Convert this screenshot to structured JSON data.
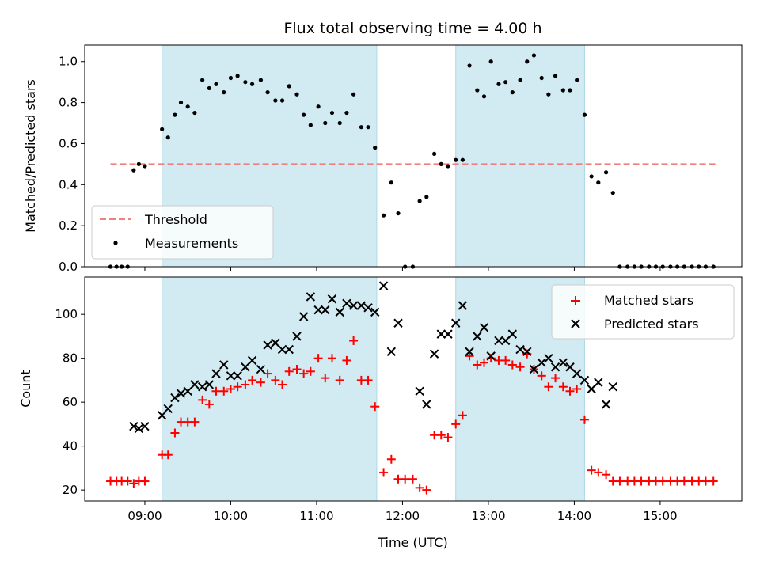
{
  "chart_data": {
    "type": "scatter",
    "title": "Flux total observing time = 4.00 h",
    "xlabel": "Time (UTC)",
    "x_tick_labels": [
      "09:00",
      "10:00",
      "11:00",
      "12:00",
      "13:00",
      "14:00",
      "15:00"
    ],
    "xlim_hours": [
      8.3,
      15.95
    ],
    "x_ticks_hours": [
      9,
      10,
      11,
      12,
      13,
      14,
      15
    ],
    "shaded_intervals_hours": [
      [
        9.2,
        11.7
      ],
      [
        12.62,
        14.12
      ]
    ],
    "colors": {
      "shade": "#add8e6",
      "threshold": "#f08080",
      "measurements": "#000000",
      "matched": "#ff0000",
      "predicted": "#000000"
    },
    "panels": [
      {
        "ylabel": "Matched/Predicted stars",
        "ylim": [
          0,
          1.08
        ],
        "y_ticks": [
          0.0,
          0.2,
          0.4,
          0.6,
          0.8,
          1.0
        ],
        "y_tick_labels": [
          "0.0",
          "0.2",
          "0.4",
          "0.6",
          "0.8",
          "1.0"
        ],
        "legend_position": "lower-left",
        "threshold": {
          "name": "Threshold",
          "y": 0.5,
          "x_range_hours": [
            8.6,
            15.65
          ]
        },
        "series": [
          {
            "name": "Measurements",
            "marker": "dot",
            "points": [
              [
                8.6,
                0.0
              ],
              [
                8.67,
                0.0
              ],
              [
                8.73,
                0.0
              ],
              [
                8.8,
                0.0
              ],
              [
                8.87,
                0.47
              ],
              [
                8.93,
                0.5
              ],
              [
                9.0,
                0.49
              ],
              [
                9.2,
                0.67
              ],
              [
                9.27,
                0.63
              ],
              [
                9.35,
                0.74
              ],
              [
                9.42,
                0.8
              ],
              [
                9.5,
                0.78
              ],
              [
                9.58,
                0.75
              ],
              [
                9.67,
                0.91
              ],
              [
                9.75,
                0.87
              ],
              [
                9.83,
                0.89
              ],
              [
                9.92,
                0.85
              ],
              [
                10.0,
                0.92
              ],
              [
                10.08,
                0.93
              ],
              [
                10.17,
                0.9
              ],
              [
                10.25,
                0.89
              ],
              [
                10.35,
                0.91
              ],
              [
                10.43,
                0.85
              ],
              [
                10.52,
                0.81
              ],
              [
                10.6,
                0.81
              ],
              [
                10.68,
                0.88
              ],
              [
                10.77,
                0.84
              ],
              [
                10.85,
                0.74
              ],
              [
                10.93,
                0.69
              ],
              [
                11.02,
                0.78
              ],
              [
                11.1,
                0.7
              ],
              [
                11.18,
                0.75
              ],
              [
                11.27,
                0.7
              ],
              [
                11.35,
                0.75
              ],
              [
                11.43,
                0.84
              ],
              [
                11.52,
                0.68
              ],
              [
                11.6,
                0.68
              ],
              [
                11.68,
                0.58
              ],
              [
                11.78,
                0.25
              ],
              [
                11.87,
                0.41
              ],
              [
                11.95,
                0.26
              ],
              [
                12.03,
                0.0
              ],
              [
                12.12,
                0.0
              ],
              [
                12.2,
                0.32
              ],
              [
                12.28,
                0.34
              ],
              [
                12.37,
                0.55
              ],
              [
                12.45,
                0.5
              ],
              [
                12.53,
                0.49
              ],
              [
                12.62,
                0.52
              ],
              [
                12.7,
                0.52
              ],
              [
                12.78,
                0.98
              ],
              [
                12.87,
                0.86
              ],
              [
                12.95,
                0.83
              ],
              [
                13.03,
                1.0
              ],
              [
                13.12,
                0.89
              ],
              [
                13.2,
                0.9
              ],
              [
                13.28,
                0.85
              ],
              [
                13.37,
                0.91
              ],
              [
                13.45,
                1.0
              ],
              [
                13.53,
                1.03
              ],
              [
                13.62,
                0.92
              ],
              [
                13.7,
                0.84
              ],
              [
                13.78,
                0.93
              ],
              [
                13.87,
                0.86
              ],
              [
                13.95,
                0.86
              ],
              [
                14.03,
                0.91
              ],
              [
                14.12,
                0.74
              ],
              [
                14.2,
                0.44
              ],
              [
                14.28,
                0.41
              ],
              [
                14.37,
                0.46
              ],
              [
                14.45,
                0.36
              ],
              [
                14.53,
                0.0
              ],
              [
                14.62,
                0.0
              ],
              [
                14.7,
                0.0
              ],
              [
                14.78,
                0.0
              ],
              [
                14.87,
                0.0
              ],
              [
                14.95,
                0.0
              ],
              [
                15.03,
                0.0
              ],
              [
                15.12,
                0.0
              ],
              [
                15.2,
                0.0
              ],
              [
                15.28,
                0.0
              ],
              [
                15.37,
                0.0
              ],
              [
                15.45,
                0.0
              ],
              [
                15.53,
                0.0
              ],
              [
                15.62,
                0.0
              ]
            ]
          }
        ]
      },
      {
        "ylabel": "Count",
        "ylim": [
          15,
          117
        ],
        "y_ticks": [
          20,
          40,
          60,
          80,
          100
        ],
        "y_tick_labels": [
          "20",
          "40",
          "60",
          "80",
          "100"
        ],
        "legend_position": "upper-right",
        "series": [
          {
            "name": "Matched stars",
            "marker": "plus",
            "points": [
              [
                8.6,
                24
              ],
              [
                8.67,
                24
              ],
              [
                8.73,
                24
              ],
              [
                8.8,
                24
              ],
              [
                8.87,
                23
              ],
              [
                8.93,
                24
              ],
              [
                9.0,
                24
              ],
              [
                9.2,
                36
              ],
              [
                9.27,
                36
              ],
              [
                9.35,
                46
              ],
              [
                9.42,
                51
              ],
              [
                9.5,
                51
              ],
              [
                9.58,
                51
              ],
              [
                9.67,
                61
              ],
              [
                9.75,
                59
              ],
              [
                9.83,
                65
              ],
              [
                9.92,
                65
              ],
              [
                10.0,
                66
              ],
              [
                10.08,
                67
              ],
              [
                10.17,
                68
              ],
              [
                10.25,
                70
              ],
              [
                10.35,
                69
              ],
              [
                10.43,
                73
              ],
              [
                10.52,
                70
              ],
              [
                10.6,
                68
              ],
              [
                10.68,
                74
              ],
              [
                10.77,
                75
              ],
              [
                10.85,
                73
              ],
              [
                10.93,
                74
              ],
              [
                11.02,
                80
              ],
              [
                11.1,
                71
              ],
              [
                11.18,
                80
              ],
              [
                11.27,
                70
              ],
              [
                11.35,
                79
              ],
              [
                11.43,
                88
              ],
              [
                11.52,
                70
              ],
              [
                11.6,
                70
              ],
              [
                11.68,
                58
              ],
              [
                11.78,
                28
              ],
              [
                11.87,
                34
              ],
              [
                11.95,
                25
              ],
              [
                12.03,
                25
              ],
              [
                12.12,
                25
              ],
              [
                12.2,
                21
              ],
              [
                12.28,
                20
              ],
              [
                12.37,
                45
              ],
              [
                12.45,
                45
              ],
              [
                12.53,
                44
              ],
              [
                12.62,
                50
              ],
              [
                12.7,
                54
              ],
              [
                12.78,
                81
              ],
              [
                12.87,
                77
              ],
              [
                12.95,
                78
              ],
              [
                13.03,
                80
              ],
              [
                13.12,
                79
              ],
              [
                13.2,
                79
              ],
              [
                13.28,
                77
              ],
              [
                13.37,
                76
              ],
              [
                13.45,
                82
              ],
              [
                13.53,
                75
              ],
              [
                13.62,
                72
              ],
              [
                13.7,
                67
              ],
              [
                13.78,
                71
              ],
              [
                13.87,
                67
              ],
              [
                13.95,
                65
              ],
              [
                14.03,
                66
              ],
              [
                14.12,
                52
              ],
              [
                14.2,
                29
              ],
              [
                14.28,
                28
              ],
              [
                14.37,
                27
              ],
              [
                14.45,
                24
              ],
              [
                14.53,
                24
              ],
              [
                14.62,
                24
              ],
              [
                14.7,
                24
              ],
              [
                14.78,
                24
              ],
              [
                14.87,
                24
              ],
              [
                14.95,
                24
              ],
              [
                15.03,
                24
              ],
              [
                15.12,
                24
              ],
              [
                15.2,
                24
              ],
              [
                15.28,
                24
              ],
              [
                15.37,
                24
              ],
              [
                15.45,
                24
              ],
              [
                15.53,
                24
              ],
              [
                15.62,
                24
              ]
            ]
          },
          {
            "name": "Predicted stars",
            "marker": "cross",
            "points": [
              [
                8.87,
                49
              ],
              [
                8.93,
                48
              ],
              [
                9.0,
                49
              ],
              [
                9.2,
                54
              ],
              [
                9.27,
                57
              ],
              [
                9.35,
                62
              ],
              [
                9.42,
                64
              ],
              [
                9.5,
                65
              ],
              [
                9.58,
                68
              ],
              [
                9.67,
                67
              ],
              [
                9.75,
                68
              ],
              [
                9.83,
                73
              ],
              [
                9.92,
                77
              ],
              [
                10.0,
                72
              ],
              [
                10.08,
                72
              ],
              [
                10.17,
                76
              ],
              [
                10.25,
                79
              ],
              [
                10.35,
                75
              ],
              [
                10.43,
                86
              ],
              [
                10.52,
                87
              ],
              [
                10.6,
                84
              ],
              [
                10.68,
                84
              ],
              [
                10.77,
                90
              ],
              [
                10.85,
                99
              ],
              [
                10.93,
                108
              ],
              [
                11.02,
                102
              ],
              [
                11.1,
                102
              ],
              [
                11.18,
                107
              ],
              [
                11.27,
                101
              ],
              [
                11.35,
                105
              ],
              [
                11.43,
                104
              ],
              [
                11.52,
                104
              ],
              [
                11.6,
                103
              ],
              [
                11.68,
                101
              ],
              [
                11.78,
                113
              ],
              [
                11.87,
                83
              ],
              [
                11.95,
                96
              ],
              [
                12.2,
                65
              ],
              [
                12.28,
                59
              ],
              [
                12.37,
                82
              ],
              [
                12.45,
                91
              ],
              [
                12.53,
                91
              ],
              [
                12.62,
                96
              ],
              [
                12.7,
                104
              ],
              [
                12.78,
                83
              ],
              [
                12.87,
                90
              ],
              [
                12.95,
                94
              ],
              [
                13.03,
                81
              ],
              [
                13.12,
                88
              ],
              [
                13.2,
                88
              ],
              [
                13.28,
                91
              ],
              [
                13.37,
                84
              ],
              [
                13.45,
                83
              ],
              [
                13.53,
                75
              ],
              [
                13.62,
                78
              ],
              [
                13.7,
                80
              ],
              [
                13.78,
                76
              ],
              [
                13.87,
                78
              ],
              [
                13.95,
                76
              ],
              [
                14.03,
                73
              ],
              [
                14.12,
                70
              ],
              [
                14.2,
                66
              ],
              [
                14.28,
                69
              ],
              [
                14.37,
                59
              ],
              [
                14.45,
                67
              ]
            ]
          }
        ]
      }
    ]
  }
}
